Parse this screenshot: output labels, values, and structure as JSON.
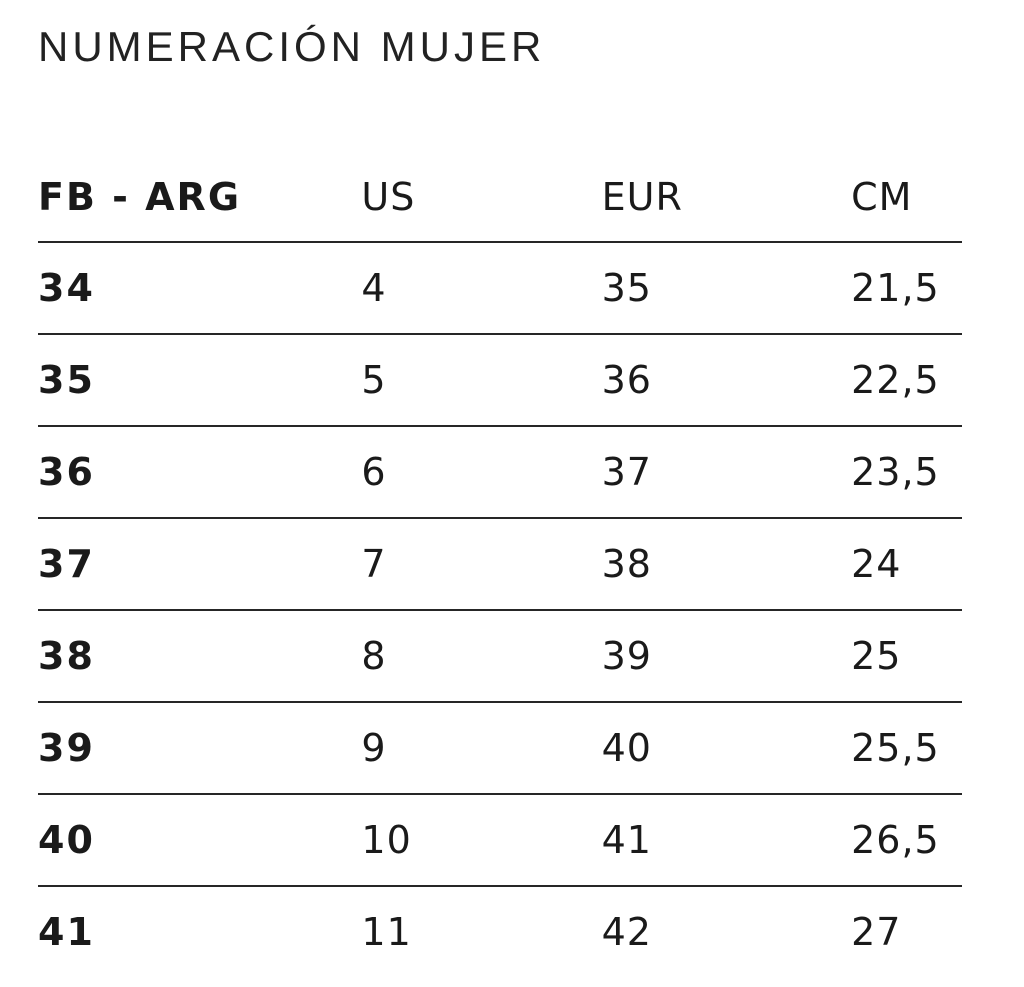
{
  "page": {
    "title": "NUMERACIÓN MUJER"
  },
  "colors": {
    "background": "#ffffff",
    "text": "#1a1a1a",
    "rule_line": "#262626"
  },
  "chart_data": {
    "type": "table",
    "title": "NUMERACIÓN MUJER",
    "columns": [
      "FB - ARG",
      "US",
      "EUR",
      "CM"
    ],
    "rows": [
      [
        "34",
        "4",
        "35",
        "21,5"
      ],
      [
        "35",
        "5",
        "36",
        "22,5"
      ],
      [
        "36",
        "6",
        "37",
        "23,5"
      ],
      [
        "37",
        "7",
        "38",
        "24"
      ],
      [
        "38",
        "8",
        "39",
        "25"
      ],
      [
        "39",
        "9",
        "40",
        "25,5"
      ],
      [
        "40",
        "10",
        "41",
        "26,5"
      ],
      [
        "41",
        "11",
        "42",
        "27"
      ]
    ],
    "layout_hints": {
      "decimal_separator": "comma",
      "first_column_bold": true,
      "row_separators": "horizontal rules only, no verticals",
      "alignment": "left"
    }
  }
}
